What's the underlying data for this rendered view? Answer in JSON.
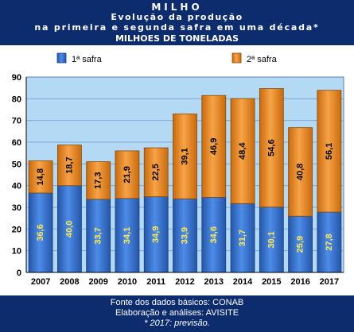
{
  "header": {
    "title": "MILHO",
    "subtitle1": "Evolução da produção",
    "subtitle2": "na primeira e segunda safra em uma década*",
    "unit": "MILHOES DE TONELADAS"
  },
  "footer": {
    "source": "Fonte dos dados básicos: CONAB",
    "analysis": "Elaboração e análises: AVISITE",
    "note": "* 2017: previsão."
  },
  "colors": {
    "frame": "#0d2c6e",
    "plot_bg": "#b3d9f5",
    "first_crop": "#3a78d4",
    "second_crop": "#e8861e"
  },
  "chart_data": {
    "type": "bar",
    "stacked": true,
    "categories": [
      "2007",
      "2008",
      "2009",
      "2010",
      "2011",
      "2012",
      "2013",
      "2014",
      "2015",
      "2016",
      "2017"
    ],
    "series": [
      {
        "name": "1ª safra",
        "values": [
          36.6,
          40.0,
          33.7,
          34.1,
          34.9,
          33.9,
          34.6,
          31.7,
          30.1,
          25.9,
          27.8
        ],
        "labels": [
          "36,6",
          "40,0",
          "33,7",
          "34,1",
          "34,9",
          "33,9",
          "34,6",
          "31,7",
          "30,1",
          "25,9",
          "27,8"
        ]
      },
      {
        "name": "2ª safra",
        "values": [
          14.8,
          18.7,
          17.3,
          21.9,
          22.5,
          39.1,
          46.9,
          48.4,
          54.6,
          40.8,
          56.1
        ],
        "labels": [
          "14,8",
          "18,7",
          "17,3",
          "21,9",
          "22,5",
          "39,1",
          "46,9",
          "48,4",
          "54,6",
          "40,8",
          "56,1"
        ]
      }
    ],
    "yticks": [
      "0",
      "10",
      "20",
      "30",
      "40",
      "50",
      "60",
      "70",
      "80",
      "90"
    ],
    "ylim": [
      0,
      90
    ],
    "grid": true,
    "legend": "top"
  }
}
